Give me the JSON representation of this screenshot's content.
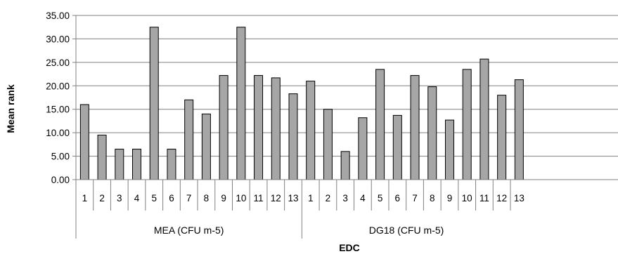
{
  "chart_data": {
    "type": "bar",
    "xlabel": "EDC",
    "ylabel": "Mean rank",
    "ylim": [
      0,
      35
    ],
    "y_ticks": [
      "0.00",
      "5.00",
      "10.00",
      "15.00",
      "20.00",
      "25.00",
      "30.00",
      "35.00"
    ],
    "grid": true,
    "legend": "none",
    "colors": {
      "bar_fill": "#a6a6a6",
      "bar_stroke": "#000000",
      "grid": "#808080",
      "axis": "#808080"
    },
    "groups": [
      {
        "label": "MEA (CFU m-5)",
        "categories": [
          "1",
          "2",
          "3",
          "4",
          "5",
          "6",
          "7",
          "8",
          "9",
          "10",
          "11",
          "12",
          "13"
        ],
        "values": [
          16.0,
          9.5,
          6.5,
          6.5,
          32.5,
          6.5,
          17.0,
          14.0,
          22.2,
          32.5,
          22.2,
          21.7,
          18.3
        ]
      },
      {
        "label": "DG18 (CFU m-5)",
        "categories": [
          "1",
          "2",
          "3",
          "4",
          "5",
          "6",
          "7",
          "8",
          "9",
          "10",
          "11",
          "12",
          "13"
        ],
        "values": [
          21.0,
          15.0,
          6.0,
          13.2,
          23.5,
          13.7,
          22.2,
          19.8,
          12.7,
          23.5,
          25.7,
          18.0,
          21.3
        ]
      }
    ]
  }
}
